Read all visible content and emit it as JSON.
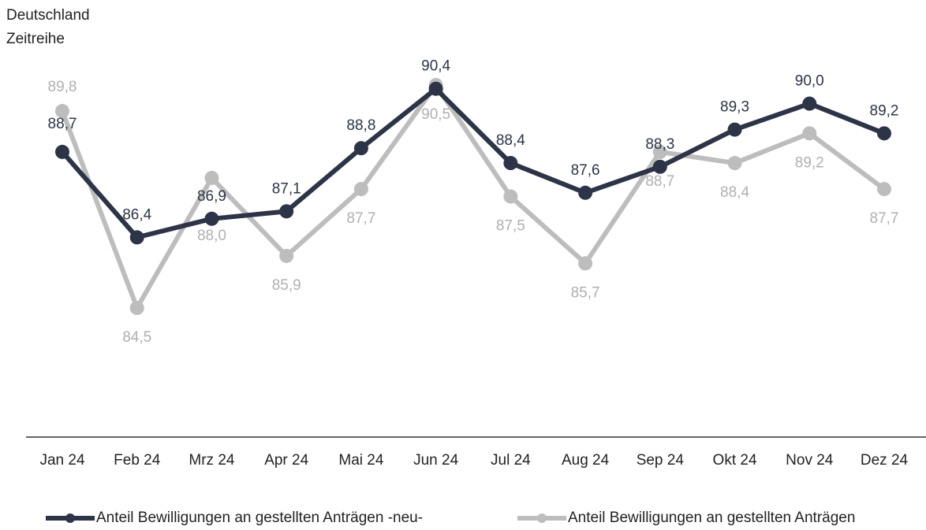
{
  "chart_data": {
    "type": "line",
    "title": "Deutschland",
    "subtitle": "Zeitreihe",
    "categories": [
      "Jan 24",
      "Feb 24",
      "Mrz 24",
      "Apr 24",
      "Mai 24",
      "Jun 24",
      "Jul 24",
      "Aug 24",
      "Sep 24",
      "Okt 24",
      "Nov 24",
      "Dez 24"
    ],
    "series": [
      {
        "name": "Anteil Bewilligungen an gestellten Anträgen -neu-",
        "color": "#2d3447",
        "values": [
          88.7,
          86.4,
          86.9,
          87.1,
          88.8,
          90.4,
          88.4,
          87.6,
          88.3,
          89.3,
          90.0,
          89.2
        ],
        "value_labels": [
          "88,7",
          "86,4",
          "86,9",
          "87,1",
          "88,8",
          "90,4",
          "88,4",
          "87,6",
          "88,3",
          "89,3",
          "90,0",
          "89,2"
        ]
      },
      {
        "name": "Anteil Bewilligungen an gestellten Anträgen",
        "color": "#bdbdbd",
        "values": [
          89.8,
          84.5,
          88.0,
          85.9,
          87.7,
          90.5,
          87.5,
          85.7,
          88.7,
          88.4,
          89.2,
          87.7
        ],
        "value_labels": [
          "89,8",
          "84,5",
          "88,0",
          "85,9",
          "87,7",
          "90,5",
          "87,5",
          "85,7",
          "88,7",
          "88,4",
          "89,2",
          "87,7"
        ]
      }
    ]
  }
}
